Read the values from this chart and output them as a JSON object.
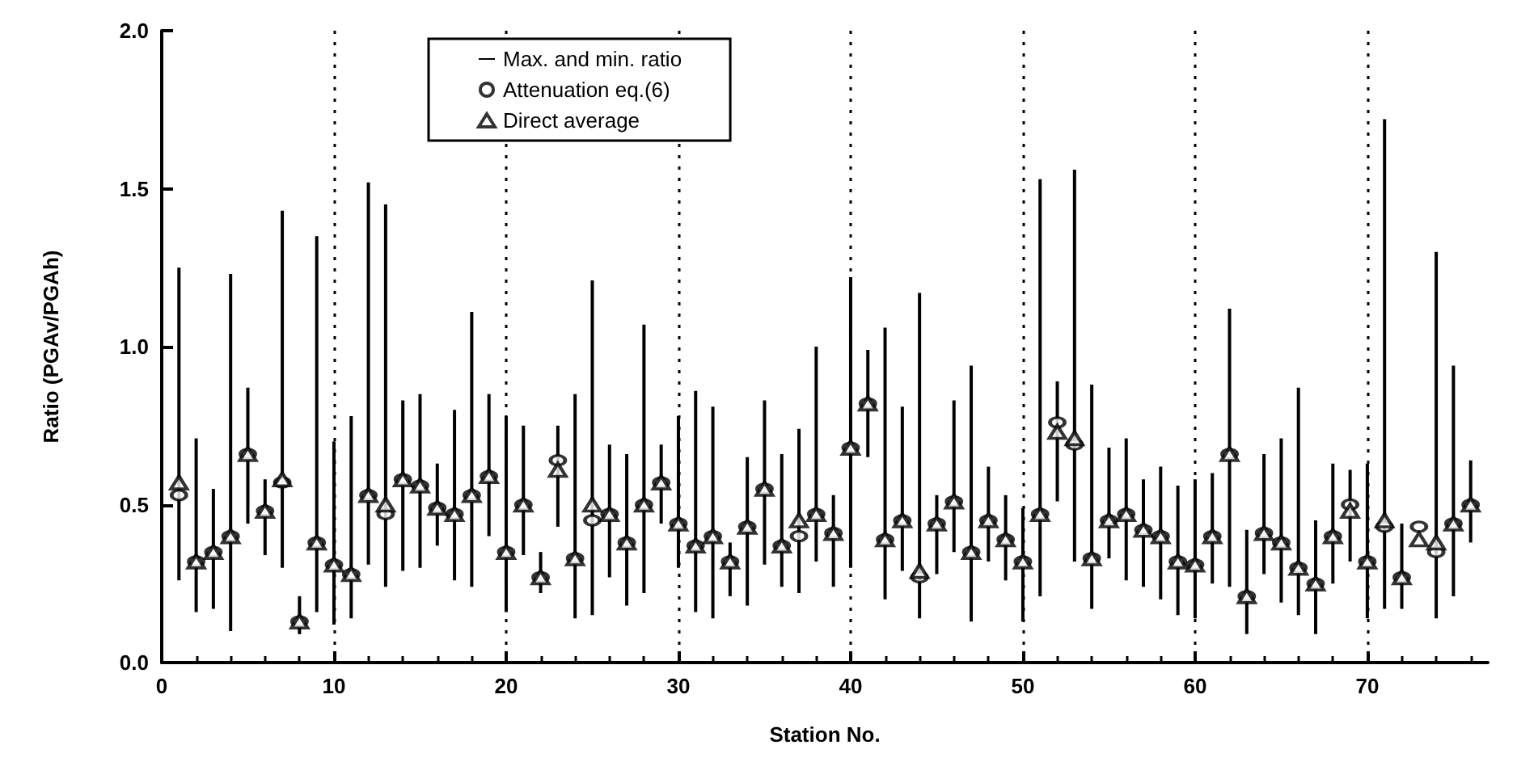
{
  "chart_data": {
    "type": "scatter",
    "xlabel": "Station No.",
    "ylabel": "Ratio (PGAv/PGAh)",
    "xlim": [
      0,
      77
    ],
    "xticks": [
      0,
      10,
      20,
      30,
      40,
      50,
      60,
      70
    ],
    "ylim": [
      0,
      2
    ],
    "yticks": [
      {
        "value": 0,
        "label": "0.0"
      },
      {
        "value": 0.5,
        "label": "0.5"
      },
      {
        "value": 1,
        "label": "1.0"
      },
      {
        "value": 1.5,
        "label": "1.5"
      },
      {
        "value": 2,
        "label": "2.0"
      }
    ],
    "grid": "x",
    "legend": "top",
    "x": [
      1,
      2,
      3,
      4,
      5,
      6,
      7,
      8,
      9,
      10,
      11,
      12,
      13,
      14,
      15,
      16,
      17,
      18,
      19,
      20,
      21,
      22,
      23,
      24,
      25,
      26,
      27,
      28,
      29,
      30,
      31,
      32,
      33,
      34,
      35,
      36,
      37,
      38,
      39,
      40,
      41,
      42,
      43,
      44,
      45,
      46,
      47,
      48,
      49,
      50,
      51,
      52,
      53,
      54,
      55,
      56,
      57,
      58,
      59,
      60,
      61,
      62,
      63,
      64,
      65,
      66,
      67,
      68,
      69,
      70,
      71,
      72,
      73,
      74,
      75,
      76
    ],
    "series": [
      {
        "name": "Max. and min. ratio",
        "type": "bar",
        "color": "#000000",
        "base": [
          0.26,
          0.16,
          0.17,
          0.1,
          0.44,
          0.34,
          0.3,
          0.09,
          0.16,
          0.12,
          0.14,
          0.31,
          0.24,
          0.29,
          0.3,
          0.37,
          0.26,
          0.24,
          0.4,
          0.16,
          0.34,
          0.22,
          0.43,
          0.14,
          0.15,
          0.27,
          0.18,
          0.22,
          0.44,
          0.3,
          0.16,
          0.14,
          0.21,
          0.18,
          0.31,
          0.24,
          0.22,
          0.32,
          0.24,
          0.3,
          0.65,
          0.2,
          0.29,
          0.14,
          0.28,
          0.35,
          0.13,
          0.32,
          0.26,
          0.13,
          0.21,
          0.51,
          0.32,
          0.17,
          0.33,
          0.26,
          0.24,
          0.2,
          0.15,
          0.14,
          0.25,
          0.24,
          0.09,
          0.28,
          0.19,
          0.15,
          0.09,
          0.25,
          0.32,
          0.14,
          0.17,
          0.17,
          null,
          0.14,
          0.21,
          0.38
        ],
        "values": [
          0.99,
          0.55,
          0.38,
          1.13,
          0.43,
          0.24,
          1.13,
          0.12,
          1.19,
          0.58,
          0.64,
          1.21,
          1.21,
          0.54,
          0.55,
          0.26,
          0.54,
          0.87,
          0.45,
          0.62,
          0.41,
          0.13,
          0.32,
          0.71,
          1.06,
          0.42,
          0.48,
          0.85,
          0.25,
          0.48,
          0.7,
          0.67,
          0.17,
          0.47,
          0.52,
          0.42,
          0.52,
          0.68,
          0.29,
          0.92,
          0.34,
          0.86,
          0.52,
          1.03,
          0.25,
          0.48,
          0.81,
          0.3,
          0.27,
          0.36,
          1.32,
          0.38,
          1.24,
          0.71,
          0.35,
          0.45,
          0.34,
          0.42,
          0.41,
          0.44,
          0.35,
          0.88,
          0.33,
          0.38,
          0.52,
          0.72,
          0.36,
          0.38,
          0.29,
          0.49,
          1.55,
          0.27,
          null,
          1.16,
          0.73,
          0.26
        ]
      },
      {
        "name": "Attenuation eq.(6)",
        "marker": "circle",
        "color": "#000000",
        "values": [
          0.53,
          0.32,
          0.35,
          0.4,
          0.66,
          0.48,
          0.57,
          0.13,
          0.38,
          0.31,
          0.28,
          0.53,
          0.47,
          0.58,
          0.56,
          0.49,
          0.47,
          0.53,
          0.59,
          0.35,
          0.5,
          0.27,
          0.64,
          0.33,
          0.45,
          0.47,
          0.38,
          0.5,
          0.57,
          0.44,
          0.37,
          0.4,
          0.32,
          0.43,
          0.55,
          0.37,
          0.4,
          0.47,
          0.41,
          0.68,
          0.82,
          0.39,
          0.45,
          0.27,
          0.44,
          0.51,
          0.35,
          0.45,
          0.39,
          0.32,
          0.47,
          0.76,
          0.69,
          0.33,
          0.45,
          0.47,
          0.42,
          0.4,
          0.32,
          0.31,
          0.4,
          0.66,
          0.21,
          0.41,
          0.38,
          0.3,
          0.25,
          0.4,
          0.5,
          0.32,
          0.43,
          0.27,
          0.43,
          0.35,
          0.44,
          0.5
        ]
      },
      {
        "name": "Direct average",
        "marker": "triangle",
        "color": "#000000",
        "values": [
          0.57,
          0.32,
          0.35,
          0.4,
          0.66,
          0.48,
          0.58,
          0.13,
          0.38,
          0.31,
          0.28,
          0.53,
          0.5,
          0.58,
          0.56,
          0.49,
          0.47,
          0.53,
          0.59,
          0.35,
          0.5,
          0.27,
          0.61,
          0.33,
          0.5,
          0.47,
          0.38,
          0.5,
          0.57,
          0.44,
          0.37,
          0.4,
          0.32,
          0.43,
          0.55,
          0.37,
          0.45,
          0.47,
          0.41,
          0.68,
          0.82,
          0.39,
          0.45,
          0.29,
          0.44,
          0.51,
          0.35,
          0.45,
          0.39,
          0.32,
          0.47,
          0.73,
          0.71,
          0.33,
          0.45,
          0.47,
          0.42,
          0.4,
          0.32,
          0.31,
          0.4,
          0.66,
          0.21,
          0.41,
          0.38,
          0.3,
          0.25,
          0.4,
          0.48,
          0.32,
          0.45,
          0.27,
          0.39,
          0.38,
          0.44,
          0.5
        ]
      }
    ]
  }
}
